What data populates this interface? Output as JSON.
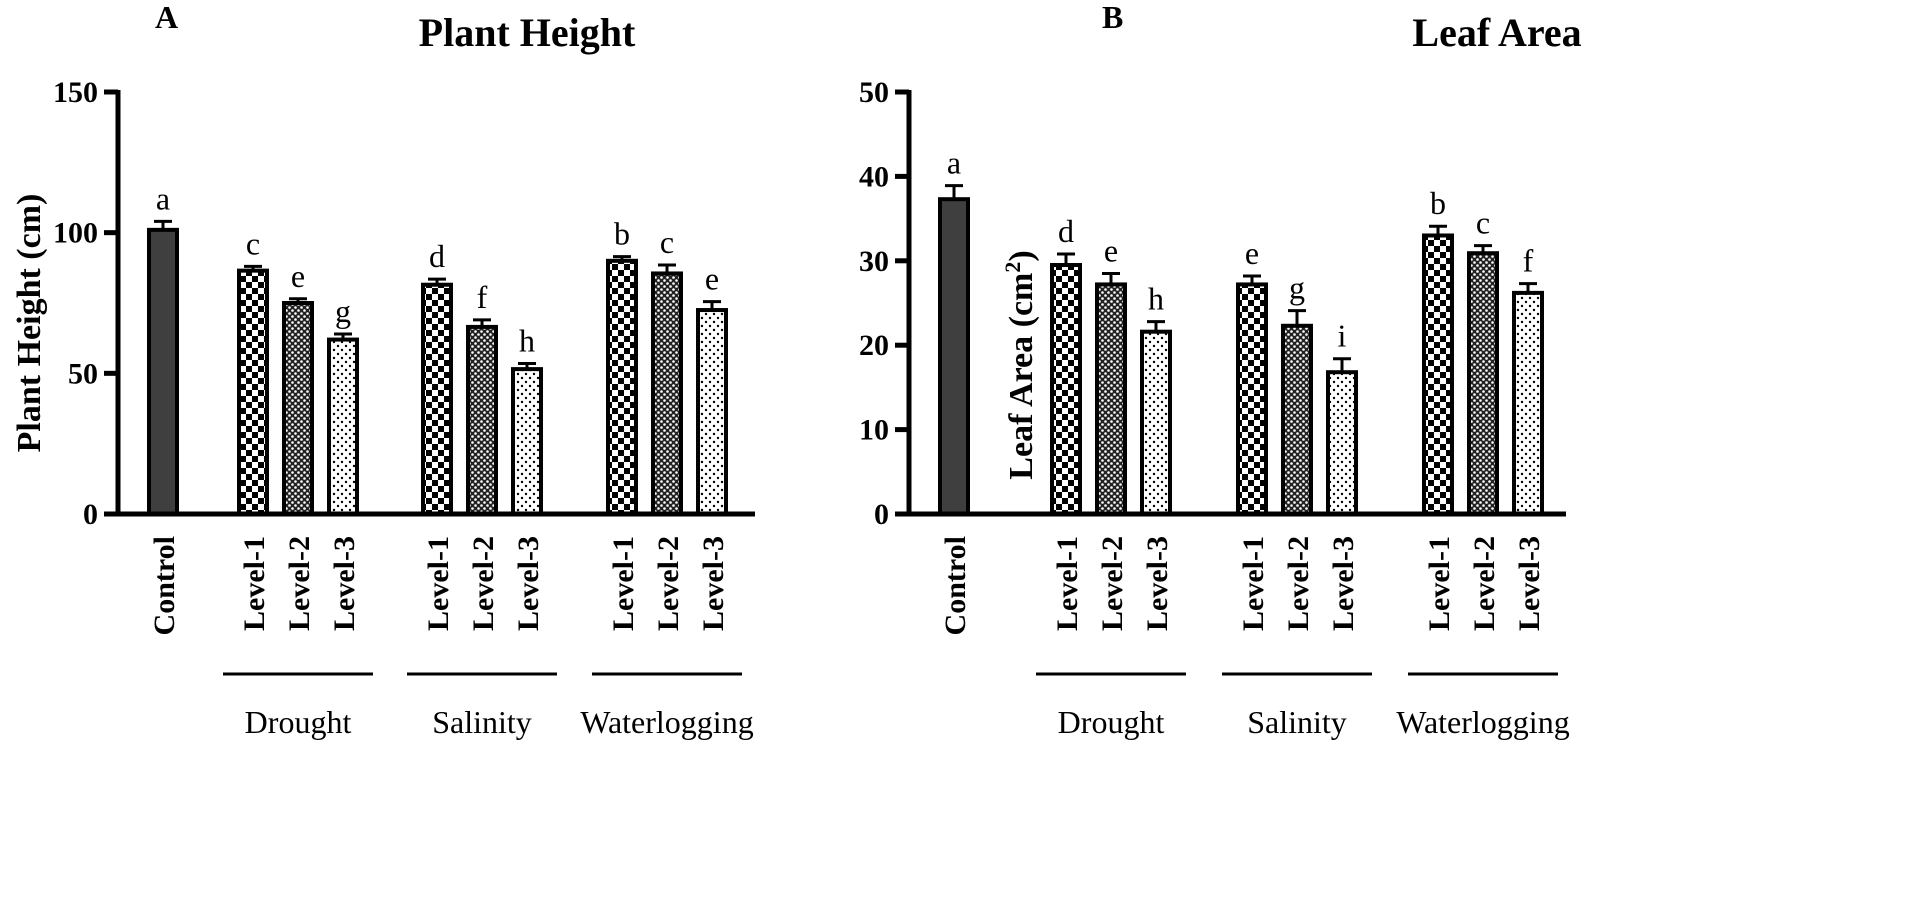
{
  "colors": {
    "bar_solid": "#3f3f3f",
    "ink": "#000000",
    "background": "#ffffff"
  },
  "chart_data": [
    {
      "type": "bar",
      "panel": "A",
      "title": "Plant Height",
      "ylabel": "Plant Height (cm)",
      "xlabel": "",
      "ylim": [
        0,
        150
      ],
      "yticks": [
        0,
        50,
        100,
        150
      ],
      "grid": false,
      "legend": "none",
      "categories": [
        "Control",
        "Level-1",
        "Level-2",
        "Level-3",
        "Level-1",
        "Level-2",
        "Level-3",
        "Level-1",
        "Level-2",
        "Level-3"
      ],
      "groups": [
        {
          "name": "Drought",
          "members": [
            1,
            2,
            3
          ]
        },
        {
          "name": "Salinity",
          "members": [
            4,
            5,
            6
          ]
        },
        {
          "name": "Waterlogging",
          "members": [
            7,
            8,
            9
          ]
        }
      ],
      "patterns": [
        "solid",
        "checker",
        "dense",
        "dots",
        "checker",
        "dense",
        "dots",
        "checker",
        "dense",
        "dots"
      ],
      "values": [
        101,
        86.5,
        75,
        62,
        81.5,
        66.5,
        51.5,
        90,
        85.5,
        72.5
      ],
      "errors": [
        3,
        1.5,
        1.5,
        2,
        2,
        2.5,
        2,
        1.5,
        3,
        3
      ],
      "letters": [
        "a",
        "c",
        "e",
        "g",
        "d",
        "f",
        "h",
        "b",
        "c",
        "e"
      ]
    },
    {
      "type": "bar",
      "panel": "B",
      "title": "Leaf Area",
      "ylabel": "Leaf  Area (cm",
      "ylabel_superscript": "2",
      "ylabel_close": ")",
      "xlabel": "",
      "ylim": [
        0,
        50
      ],
      "yticks": [
        0,
        10,
        20,
        30,
        40,
        50
      ],
      "grid": false,
      "legend": "none",
      "categories": [
        "Control",
        "Level-1",
        "Level-2",
        "Level-3",
        "Level-1",
        "Level-2",
        "Level-3",
        "Level-1",
        "Level-2",
        "Level-3"
      ],
      "groups": [
        {
          "name": "Drought",
          "members": [
            1,
            2,
            3
          ]
        },
        {
          "name": "Salinity",
          "members": [
            4,
            5,
            6
          ]
        },
        {
          "name": "Waterlogging",
          "members": [
            7,
            8,
            9
          ]
        }
      ],
      "patterns": [
        "solid",
        "checker",
        "dense",
        "dots",
        "checker",
        "dense",
        "dots",
        "checker",
        "dense",
        "dots"
      ],
      "values": [
        37.3,
        29.5,
        27.2,
        21.6,
        27.2,
        22.3,
        16.8,
        33,
        30.9,
        26.2
      ],
      "errors": [
        1.6,
        1.3,
        1.3,
        1.2,
        1.0,
        1.8,
        1.6,
        1.1,
        0.9,
        1.1
      ],
      "letters": [
        "a",
        "d",
        "e",
        "h",
        "e",
        "g",
        "i",
        "b",
        "c",
        "f"
      ]
    }
  ]
}
